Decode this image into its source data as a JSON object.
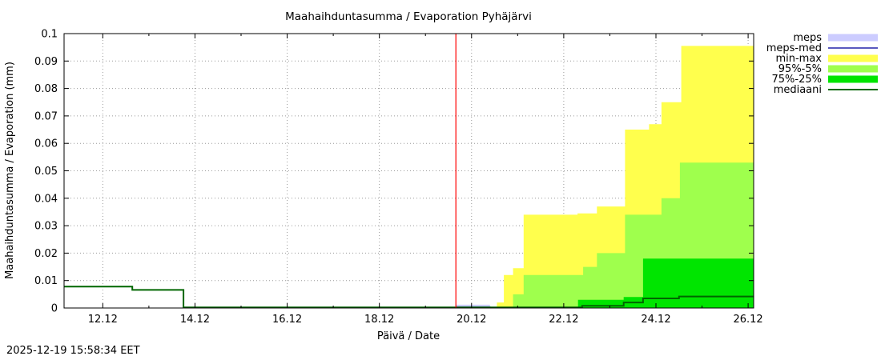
{
  "timestamp": "2025-12-19 15:58:34 EET",
  "chart_data": {
    "type": "area",
    "title": "Maahaihduntasumma / Evaporation   Pyhäjärvi",
    "xlabel": "Päivä / Date",
    "ylabel": "Maahaihduntasumma / Evaporation (mm)",
    "x_unit": "day of December 2025",
    "xlim": [
      11.16,
      26.12
    ],
    "ylim": [
      0,
      0.1
    ],
    "grid": true,
    "grid_color": "#9a9a9a",
    "xticks": [
      {
        "v": 12,
        "label": "12.12"
      },
      {
        "v": 14,
        "label": "14.12"
      },
      {
        "v": 16,
        "label": "16.12"
      },
      {
        "v": 18,
        "label": "18.12"
      },
      {
        "v": 20,
        "label": "20.12"
      },
      {
        "v": 22,
        "label": "22.12"
      },
      {
        "v": 24,
        "label": "24.12"
      },
      {
        "v": 26,
        "label": "26.12"
      }
    ],
    "minor_xticks": [
      13,
      15,
      17,
      19,
      21,
      23,
      25
    ],
    "yticks": [
      {
        "v": 0,
        "label": "0"
      },
      {
        "v": 0.01,
        "label": "0.01"
      },
      {
        "v": 0.02,
        "label": "0.02"
      },
      {
        "v": 0.03,
        "label": "0.03"
      },
      {
        "v": 0.04,
        "label": "0.04"
      },
      {
        "v": 0.05,
        "label": "0.05"
      },
      {
        "v": 0.06,
        "label": "0.06"
      },
      {
        "v": 0.07,
        "label": "0.07"
      },
      {
        "v": 0.08,
        "label": "0.08"
      },
      {
        "v": 0.09,
        "label": "0.09"
      },
      {
        "v": 0.1,
        "label": "0.1"
      }
    ],
    "current_time_x": 19.66,
    "current_time_color": "#ff0000",
    "series": [
      {
        "name": "min-max",
        "kind": "band",
        "color": "#ffff4d",
        "points": [
          [
            19.66,
            0
          ],
          [
            20.55,
            0
          ],
          [
            20.55,
            0.002
          ],
          [
            20.7,
            0.002
          ],
          [
            20.7,
            0.012
          ],
          [
            20.9,
            0.012
          ],
          [
            20.9,
            0.0145
          ],
          [
            21.13,
            0.0145
          ],
          [
            21.13,
            0.034
          ],
          [
            22.3,
            0.034
          ],
          [
            22.3,
            0.0345
          ],
          [
            22.72,
            0.0345
          ],
          [
            22.72,
            0.037
          ],
          [
            23.33,
            0.037
          ],
          [
            23.33,
            0.065
          ],
          [
            23.85,
            0.065
          ],
          [
            23.85,
            0.067
          ],
          [
            24.12,
            0.067
          ],
          [
            24.12,
            0.075
          ],
          [
            24.55,
            0.075
          ],
          [
            24.55,
            0.0955
          ],
          [
            26.12,
            0.0955
          ]
        ]
      },
      {
        "name": "95%-5%",
        "kind": "band",
        "color": "#9fff4d",
        "points": [
          [
            19.66,
            0
          ],
          [
            20.9,
            0
          ],
          [
            20.9,
            0.005
          ],
          [
            21.13,
            0.005
          ],
          [
            21.13,
            0.012
          ],
          [
            22.42,
            0.012
          ],
          [
            22.42,
            0.015
          ],
          [
            22.72,
            0.015
          ],
          [
            22.72,
            0.02
          ],
          [
            23.33,
            0.02
          ],
          [
            23.33,
            0.034
          ],
          [
            24.12,
            0.034
          ],
          [
            24.12,
            0.04
          ],
          [
            24.52,
            0.04
          ],
          [
            24.52,
            0.053
          ],
          [
            26.12,
            0.053
          ]
        ]
      },
      {
        "name": "75%-25%",
        "kind": "band",
        "color": "#00e500",
        "points": [
          [
            19.66,
            0
          ],
          [
            22.31,
            0
          ],
          [
            22.31,
            0.003
          ],
          [
            23.3,
            0.003
          ],
          [
            23.3,
            0.004
          ],
          [
            23.72,
            0.004
          ],
          [
            23.72,
            0.018
          ],
          [
            26.12,
            0.018
          ]
        ]
      },
      {
        "name": "meps",
        "kind": "band",
        "color": "#ccccff",
        "points": [
          [
            19.66,
            0.0012
          ],
          [
            20.4,
            0.0012
          ],
          [
            20.4,
            0.0003
          ],
          [
            20.9,
            0.0003
          ],
          [
            20.9,
            0
          ]
        ]
      },
      {
        "name": "meps-med",
        "kind": "line",
        "color": "#2222aa",
        "width": 1.5,
        "points": [
          [
            19.66,
            0.0003
          ],
          [
            20.4,
            0.0003
          ],
          [
            20.4,
            0.0001
          ],
          [
            20.9,
            0.0001
          ]
        ]
      },
      {
        "name": "mediaani",
        "kind": "line",
        "color": "#006600",
        "width": 2,
        "points": [
          [
            11.16,
            0.0078
          ],
          [
            12.64,
            0.0078
          ],
          [
            12.64,
            0.0066
          ],
          [
            13.75,
            0.0066
          ],
          [
            13.75,
            0.0002
          ],
          [
            19.66,
            0.0002
          ],
          [
            22.4,
            0.0002
          ],
          [
            22.4,
            0.0008
          ],
          [
            23.3,
            0.0008
          ],
          [
            23.3,
            0.002
          ],
          [
            23.72,
            0.002
          ],
          [
            23.72,
            0.0035
          ],
          [
            24.5,
            0.0035
          ],
          [
            24.5,
            0.0042
          ],
          [
            26.12,
            0.0042
          ]
        ]
      }
    ],
    "legend": [
      {
        "label": "meps",
        "kind": "band",
        "color": "#ccccff"
      },
      {
        "label": "meps-med",
        "kind": "line",
        "color": "#2222aa",
        "width": 1.5
      },
      {
        "label": "min-max",
        "kind": "band",
        "color": "#ffff4d"
      },
      {
        "label": "95%-5%",
        "kind": "band",
        "color": "#9fff4d"
      },
      {
        "label": "75%-25%",
        "kind": "band",
        "color": "#00e500"
      },
      {
        "label": "mediaani",
        "kind": "line",
        "color": "#006600",
        "width": 2
      }
    ],
    "legend_position": "top-right-outside"
  }
}
